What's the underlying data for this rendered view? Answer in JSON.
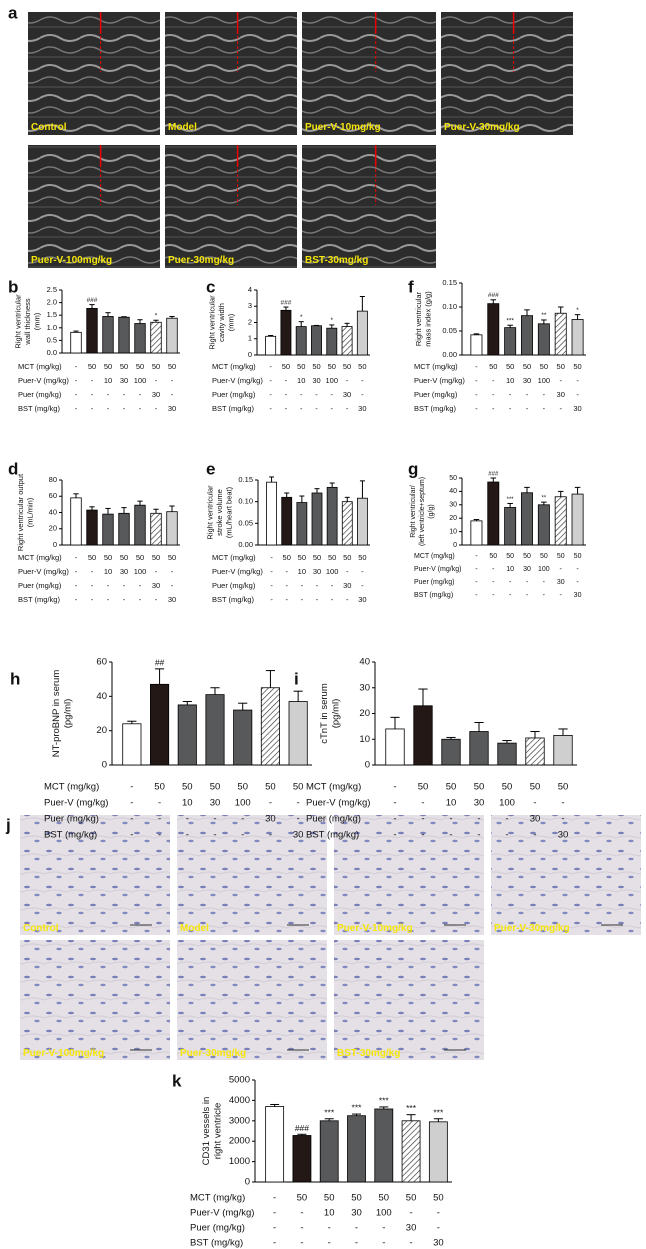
{
  "figure": {
    "panels": {
      "a": "a",
      "j": "j"
    },
    "group_labels": [
      "Control",
      "Model",
      "Puer-V-10mg/kg",
      "Puer-V-30mg/kg",
      "Puer-V-100mg/kg",
      "Puer-30mg/kg",
      "BST-30mg/kg"
    ],
    "treatments": [
      {
        "label": "MCT (mg/kg)",
        "cells": [
          "-",
          50,
          50,
          50,
          50,
          50,
          50
        ]
      },
      {
        "label": "Puer-V (mg/kg)",
        "cells": [
          "-",
          "-",
          10,
          30,
          100,
          "-",
          "-"
        ]
      },
      {
        "label": "Puer (mg/kg)",
        "cells": [
          "-",
          "-",
          "-",
          "-",
          "-",
          30,
          "-"
        ]
      },
      {
        "label": "BST (mg/kg)",
        "cells": [
          "-",
          "-",
          "-",
          "-",
          "-",
          "-",
          30
        ]
      }
    ],
    "bar_colors": [
      "#ffffff",
      "#231815",
      "#58595b",
      "#58595b",
      "#58595b",
      "#ffffff",
      "#cfcfcf"
    ],
    "hatched": [
      false,
      false,
      false,
      false,
      false,
      true,
      false
    ]
  },
  "chart_data": [
    {
      "type": "bar",
      "panel": "b",
      "ylabel": [
        "Right ventricular",
        "wall thickness",
        "(mm)"
      ],
      "values": [
        0.82,
        1.77,
        1.45,
        1.42,
        1.17,
        1.22,
        1.38
      ],
      "errors": [
        0.05,
        0.15,
        0.15,
        0.02,
        0.15,
        0.08,
        0.07
      ],
      "significance": [
        null,
        "###",
        null,
        null,
        null,
        "*",
        null
      ],
      "ylim": [
        0,
        2.5
      ],
      "yticks": [
        {
          "value": 0,
          "label": "0.0"
        },
        {
          "value": 0.5,
          "label": "0.5"
        },
        {
          "value": 1,
          "label": "1.0"
        },
        {
          "value": 1.5,
          "label": "1.5"
        },
        {
          "value": 2,
          "label": "2.0"
        },
        {
          "value": 2.5,
          "label": "2.5"
        }
      ]
    },
    {
      "type": "bar",
      "panel": "c",
      "ylabel": [
        "Right ventricular",
        "cavity width",
        "(mm)"
      ],
      "values": [
        1.15,
        2.75,
        1.75,
        1.8,
        1.65,
        1.75,
        2.7
      ],
      "errors": [
        0.05,
        0.2,
        0.3,
        0.02,
        0.2,
        0.2,
        0.9
      ],
      "significance": [
        null,
        "###",
        "*",
        null,
        "*",
        null,
        null
      ],
      "ylim": [
        0,
        4
      ],
      "yticks": [
        0,
        1,
        2,
        3,
        4
      ]
    },
    {
      "type": "bar",
      "panel": "f",
      "ylabel": [
        "Right ventricular",
        "mass index (g/g)"
      ],
      "values": [
        0.042,
        0.107,
        0.057,
        0.082,
        0.065,
        0.087,
        0.074
      ],
      "errors": [
        0.002,
        0.008,
        0.005,
        0.012,
        0.008,
        0.013,
        0.01
      ],
      "significance": [
        null,
        "###",
        "***",
        null,
        "**",
        null,
        "*"
      ],
      "ylim": [
        0,
        0.15
      ],
      "yticks": [
        {
          "value": 0,
          "label": "0.00"
        },
        {
          "value": 0.05,
          "label": "0.05"
        },
        {
          "value": 0.1,
          "label": "0.10"
        },
        {
          "value": 0.15,
          "label": "0.15"
        }
      ]
    },
    {
      "type": "bar",
      "panel": "d",
      "ylabel": [
        "Right ventricular output",
        "(mL/min)"
      ],
      "values": [
        58,
        43,
        38,
        39,
        49,
        39,
        41
      ],
      "errors": [
        5,
        4,
        7,
        7,
        5,
        5,
        7
      ],
      "significance": [
        null,
        null,
        null,
        null,
        null,
        null,
        null
      ],
      "ylim": [
        0,
        80
      ],
      "yticks": [
        0,
        20,
        40,
        60,
        80
      ]
    },
    {
      "type": "bar",
      "panel": "e",
      "ylabel": [
        "Right ventricular",
        "stroke volume",
        "(mL/heart beat)"
      ],
      "values": [
        0.145,
        0.11,
        0.098,
        0.12,
        0.133,
        0.1,
        0.108
      ],
      "errors": [
        0.012,
        0.01,
        0.015,
        0.01,
        0.01,
        0.01,
        0.04
      ],
      "significance": [
        null,
        null,
        null,
        null,
        null,
        null,
        null
      ],
      "ylim": [
        0,
        0.15
      ],
      "yticks": [
        {
          "value": 0,
          "label": "0.00"
        },
        {
          "value": 0.05,
          "label": "0.05"
        },
        {
          "value": 0.1,
          "label": "0.10"
        },
        {
          "value": 0.15,
          "label": "0.15"
        }
      ]
    },
    {
      "type": "bar",
      "panel": "g",
      "ylabel": [
        "Right ventricular/",
        "(left ventricle+septum)",
        "(g/g)"
      ],
      "values": [
        18,
        47,
        28,
        39,
        30,
        36,
        38
      ],
      "errors": [
        1,
        3,
        3,
        4,
        2,
        4,
        5
      ],
      "significance": [
        null,
        "###",
        "***",
        null,
        "**",
        null,
        null
      ],
      "ylim": [
        0,
        50
      ],
      "yticks": [
        0,
        10,
        20,
        30,
        40,
        50
      ]
    },
    {
      "type": "bar",
      "panel": "h",
      "ylabel": [
        "NT-proBNP in serum",
        "(pg/ml)"
      ],
      "values": [
        24,
        47,
        35,
        41,
        32,
        45,
        37
      ],
      "errors": [
        1.5,
        9,
        2,
        4,
        4,
        10,
        6
      ],
      "significance": [
        null,
        "##",
        null,
        null,
        null,
        null,
        null
      ],
      "ylim": [
        0,
        60
      ],
      "yticks": [
        0,
        20,
        40,
        60
      ]
    },
    {
      "type": "bar",
      "panel": "i",
      "ylabel": [
        "cTnT in serum",
        "(pg/ml)"
      ],
      "values": [
        14,
        23,
        10,
        13,
        8.5,
        10.5,
        11.5
      ],
      "errors": [
        4.5,
        6.5,
        0.7,
        3.5,
        1,
        2.5,
        2.5
      ],
      "significance": [
        null,
        null,
        null,
        null,
        null,
        null,
        null
      ],
      "ylim": [
        0,
        40
      ],
      "yticks": [
        0,
        10,
        20,
        30,
        40
      ]
    },
    {
      "type": "bar",
      "panel": "k",
      "ylabel": [
        "CD31 vessels in",
        "right ventricle"
      ],
      "values": [
        3700,
        2280,
        3000,
        3250,
        3580,
        3000,
        2950
      ],
      "errors": [
        100,
        60,
        100,
        80,
        100,
        300,
        150
      ],
      "significance": [
        null,
        "###",
        "***",
        "***",
        "***",
        "***",
        "***"
      ],
      "ylim": [
        0,
        5000
      ],
      "yticks": [
        0,
        1000,
        2000,
        3000,
        4000,
        5000
      ]
    }
  ]
}
